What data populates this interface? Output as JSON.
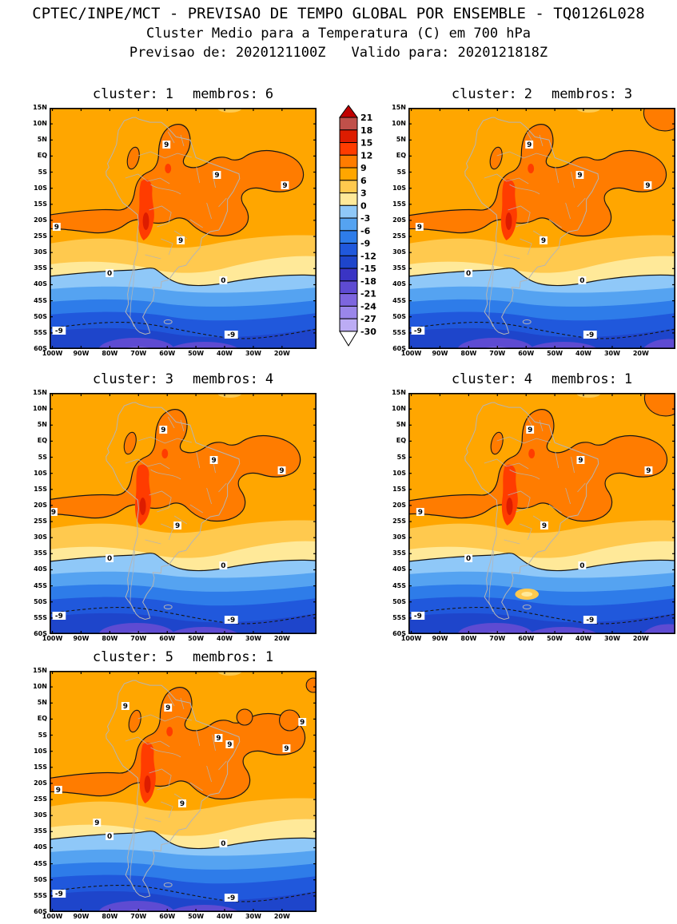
{
  "header": {
    "line1": "CPTEC/INPE/MCT - PREVISAO DE TEMPO GLOBAL POR ENSEMBLE - TQ0126L028",
    "line2": "Cluster Medio para a Temperatura (C) em 700 hPa",
    "line3_left": "Previsao de: 2020121100Z",
    "line3_right": "Valido para: 2020121818Z"
  },
  "panels": [
    {
      "cluster_label": "cluster:",
      "cluster_value": "1",
      "membros_label": "membros:",
      "membros_value": "6"
    },
    {
      "cluster_label": "cluster:",
      "cluster_value": "2",
      "membros_label": "membros:",
      "membros_value": "3"
    },
    {
      "cluster_label": "cluster:",
      "cluster_value": "3",
      "membros_label": "membros:",
      "membros_value": "4"
    },
    {
      "cluster_label": "cluster:",
      "cluster_value": "4",
      "membros_label": "membros:",
      "membros_value": "1"
    },
    {
      "cluster_label": "cluster:",
      "cluster_value": "5",
      "membros_label": "membros:",
      "membros_value": "1"
    }
  ],
  "axes": {
    "lat_ticks": [
      "15N",
      "10N",
      "5N",
      "EQ",
      "5S",
      "10S",
      "15S",
      "20S",
      "25S",
      "30S",
      "35S",
      "40S",
      "45S",
      "50S",
      "55S",
      "60S"
    ],
    "lon_ticks": [
      "100W",
      "90W",
      "80W",
      "70W",
      "60W",
      "50W",
      "40W",
      "30W",
      "20W"
    ]
  },
  "colorbar": {
    "labels": [
      "21",
      "18",
      "15",
      "12",
      "9",
      "6",
      "3",
      "0",
      "-3",
      "-6",
      "-9",
      "-12",
      "-15",
      "-18",
      "-21",
      "-24",
      "-27",
      "-30"
    ],
    "box_colors": [
      "#C0504A",
      "#DD1C00",
      "#FF3C00",
      "#FF7C00",
      "#FFA600",
      "#FFC94E",
      "#FFE999",
      "#8FC8F8",
      "#55A3F1",
      "#2E7CE9",
      "#2058DC",
      "#1E45CB",
      "#3A34C4",
      "#5E4BD2",
      "#7D66DF",
      "#9A86EA",
      "#BCACF4"
    ],
    "above_max_color": "#C00000",
    "below_min_color": "#FFFFFF"
  },
  "chart_data": {
    "type": "heatmap",
    "subtype": "filled-contour ensemble cluster-mean temperature maps over South America (5 panels + shared colorbar)",
    "variable": "Temperatura (C)",
    "level": "700 hPa",
    "init_time": "2020121100Z",
    "valid_time": "2020121818Z",
    "model_tag": "TQ0126L028",
    "source": "CPTEC/INPE/MCT",
    "panels": [
      {
        "cluster": 1,
        "membros": 6
      },
      {
        "cluster": 2,
        "membros": 3
      },
      {
        "cluster": 3,
        "membros": 4
      },
      {
        "cluster": 4,
        "membros": 1
      },
      {
        "cluster": 5,
        "membros": 1
      }
    ],
    "lat_range": [
      "15N",
      "60S"
    ],
    "lon_range": [
      "100W",
      "20W"
    ],
    "contour_interval_fill": 3,
    "labeled_contours": [
      "9",
      "0",
      "-9"
    ],
    "colorbar_levels": [
      21,
      18,
      15,
      12,
      9,
      6,
      3,
      0,
      -3,
      -6,
      -9,
      -12,
      -15,
      -18,
      -21,
      -24,
      -27,
      -30
    ],
    "pattern": "All clusters: 9-15C warm core over tropical Brazil and the Andes (solid 9C contour), base 6-9C over the tropics, temperature decreasing southward; 0C solid contour near 35-40S, dashed -9C contour near 50-57S, -12 to -27C (blue to purple) over the far south",
    "colors": {
      "base": "#FFA600",
      "blob": "#FF7C00",
      "hot": "#FF3C00",
      "hotter": "#DD1C00",
      "amber": "#FFC94E",
      "pale": "#FFE999",
      "blue1": "#8FC8F8",
      "blue2": "#55A3F1",
      "blue3": "#2E7CE9",
      "blue4": "#2058DC",
      "blue5": "#1E45CB",
      "purple": "#5E4BD2",
      "purple2": "#7D66DF",
      "coast": "#B5B5B5",
      "contour": "#161616"
    }
  }
}
